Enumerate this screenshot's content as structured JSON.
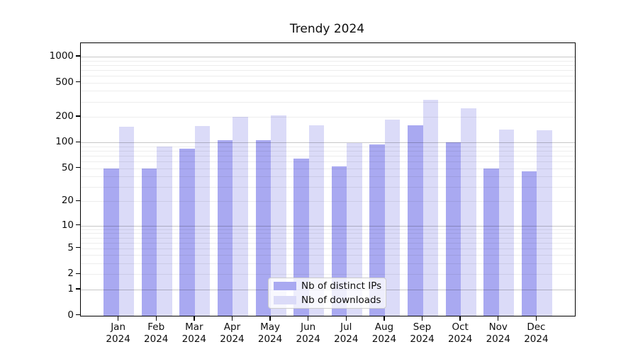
{
  "title": "Trendy 2024",
  "chart_data": {
    "type": "bar",
    "title": "Trendy 2024",
    "categories": [
      "Jan 2024",
      "Feb 2024",
      "Mar 2024",
      "Apr 2024",
      "May 2024",
      "Jun 2024",
      "Jul 2024",
      "Aug 2024",
      "Sep 2024",
      "Oct 2024",
      "Nov 2024",
      "Dec 2024"
    ],
    "series": [
      {
        "name": "Nb of distinct IPs",
        "color": "#a9a9f1",
        "values": [
          50,
          50,
          84,
          107,
          106,
          65,
          52,
          96,
          160,
          100,
          50,
          46
        ]
      },
      {
        "name": "Nb of downloads",
        "color": "#dbdbf8",
        "values": [
          152,
          90,
          156,
          198,
          207,
          160,
          98,
          185,
          318,
          250,
          142,
          140
        ]
      }
    ],
    "xlabel": "",
    "ylabel": "",
    "yscale": "log1p",
    "y_ticks": [
      0,
      1,
      2,
      5,
      10,
      20,
      50,
      100,
      200,
      500,
      1000
    ],
    "ylim": [
      0,
      1435
    ],
    "grid": true,
    "legend_position": "lower center",
    "colors": {
      "major_grid": "rgba(0,0,0,0.22)",
      "minor_grid": "rgba(0,0,0,0.07)",
      "axis": "#000000",
      "background": "#ffffff"
    }
  }
}
